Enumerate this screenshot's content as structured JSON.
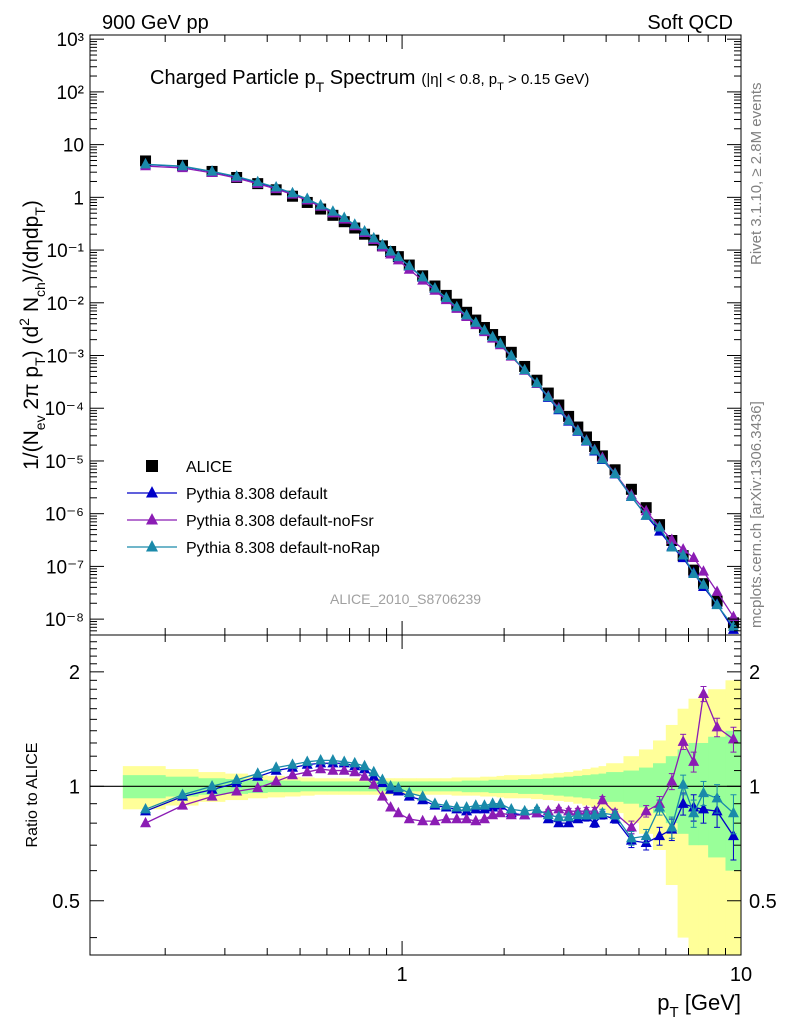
{
  "header": {
    "left": "900 GeV pp",
    "right": "Soft QCD"
  },
  "side_labels": {
    "rivet": "Rivet 3.1.10, ≥ 2.8M events",
    "mcplots": "mcplots.cern.ch [arXiv:1306.3436]"
  },
  "chart_data": [
    {
      "type": "line",
      "title": "Charged Particle pT Spectrum",
      "title_parts": {
        "main": "Charged Particle p",
        "main_sub": "T",
        "main_tail": " Spectrum",
        "cut_a": "(|η| < 0.8, p",
        "cut_sub": "T",
        "cut_b": " > 0.15 GeV)"
      },
      "ylabel_parts": [
        "1/(N",
        "ev",
        " 2π p",
        "T",
        ") (d",
        "2",
        " N",
        "ch",
        ")/(dηdp",
        "T",
        ")"
      ],
      "xlabel": "pT [GeV]",
      "xlabel_parts": {
        "main": "p",
        "sub": "T",
        "tail": " [GeV]"
      },
      "x_scale": "log",
      "y_scale": "log",
      "xlim": [
        0.12,
        10.0
      ],
      "ylim": [
        5e-09,
        1200
      ],
      "y_tick_labels": [
        "10⁻⁸",
        "10⁻⁷",
        "10⁻⁶",
        "10⁻⁵",
        "10⁻⁴",
        "10⁻³",
        "10⁻²",
        "10⁻¹",
        "1",
        "10",
        "10²",
        "10³"
      ],
      "legend_position": "bottom-left",
      "watermark": "ALICE_2010_S8706239",
      "x": [
        0.175,
        0.225,
        0.275,
        0.325,
        0.375,
        0.425,
        0.475,
        0.525,
        0.575,
        0.625,
        0.675,
        0.725,
        0.775,
        0.825,
        0.875,
        0.925,
        0.975,
        1.05,
        1.15,
        1.25,
        1.35,
        1.45,
        1.55,
        1.65,
        1.75,
        1.85,
        1.95,
        2.1,
        2.3,
        2.5,
        2.7,
        2.9,
        3.1,
        3.3,
        3.5,
        3.7,
        3.9,
        4.25,
        4.75,
        5.25,
        5.75,
        6.25,
        6.75,
        7.25,
        7.75,
        8.5,
        9.5
      ],
      "series": [
        {
          "name": "ALICE",
          "color": "#000000",
          "marker": "square",
          "values": [
            4.9,
            4.05,
            3.1,
            2.38,
            1.82,
            1.39,
            1.05,
            0.8,
            0.6,
            0.456,
            0.345,
            0.262,
            0.2,
            0.154,
            0.12,
            0.094,
            0.075,
            0.052,
            0.0325,
            0.0208,
            0.0138,
            0.0094,
            0.0066,
            0.0047,
            0.0034,
            0.0025,
            0.00185,
            0.00115,
            0.00062,
            0.00034,
            0.000194,
            0.000115,
            7e-05,
            4.4e-05,
            2.85e-05,
            1.88e-05,
            1.25e-05,
            6.8e-06,
            2.9e-06,
            1.3e-06,
            6.2e-07,
            3.1e-07,
            1.6e-07,
            8.5e-08,
            4.7e-08,
            2.2e-08,
            8.5e-09
          ]
        },
        {
          "name": "Pythia 8.308 default",
          "color": "#0000c8",
          "marker": "triangle",
          "values": [
            4.2,
            3.85,
            3.06,
            2.44,
            1.91,
            1.52,
            1.18,
            0.92,
            0.69,
            0.525,
            0.397,
            0.297,
            0.221,
            0.163,
            0.122,
            0.092,
            0.0725,
            0.049,
            0.03,
            0.0185,
            0.0122,
            0.0082,
            0.0057,
            0.0041,
            0.00295,
            0.0022,
            0.00165,
            0.00098,
            0.00052,
            0.00029,
            0.000158,
            9.2e-05,
            5.6e-05,
            3.6e-05,
            2.35e-05,
            1.52e-05,
            1.05e-05,
            5.6e-06,
            2.1e-06,
            9.2e-07,
            4.6e-07,
            2.4e-07,
            1.44e-07,
            7.5e-08,
            4.1e-08,
            1.9e-08,
            6.3e-09
          ]
        },
        {
          "name": "Pythia 8.308 default-noFsr",
          "color": "#8b1cb4",
          "marker": "triangle",
          "values": [
            3.92,
            3.6,
            2.91,
            2.32,
            1.81,
            1.44,
            1.13,
            0.875,
            0.665,
            0.5,
            0.38,
            0.285,
            0.212,
            0.156,
            0.113,
            0.083,
            0.064,
            0.0425,
            0.0265,
            0.017,
            0.0113,
            0.0077,
            0.0054,
            0.0038,
            0.0028,
            0.0021,
            0.00157,
            0.00096,
            0.00052,
            0.00029,
            0.000168,
            0.0001,
            6e-05,
            3.8e-05,
            2.45e-05,
            1.62e-05,
            1.15e-05,
            5.8e-06,
            2.25e-06,
            1.12e-06,
            5.6e-07,
            3.2e-07,
            2.1e-07,
            1.45e-07,
            8e-08,
            3.3e-08,
            1.1e-08
          ]
        },
        {
          "name": "Pythia 8.308 default-noRap",
          "color": "#1a8aaa",
          "marker": "triangle",
          "values": [
            4.25,
            3.9,
            3.1,
            2.48,
            1.95,
            1.55,
            1.2,
            0.935,
            0.705,
            0.538,
            0.408,
            0.305,
            0.227,
            0.168,
            0.125,
            0.094,
            0.074,
            0.05,
            0.0305,
            0.0188,
            0.0124,
            0.0083,
            0.0058,
            0.0042,
            0.003,
            0.00225,
            0.00168,
            0.00099,
            0.00053,
            0.0003,
            0.000163,
            9.5e-05,
            5.8e-05,
            3.7e-05,
            2.4e-05,
            1.58e-05,
            1.07e-05,
            5.7e-06,
            2.1e-06,
            9.2e-07,
            5.5e-07,
            2.3e-07,
            1.62e-07,
            7.2e-08,
            4.5e-08,
            1.85e-08,
            7.2e-09
          ]
        }
      ]
    },
    {
      "type": "line",
      "ylabel": "Ratio to ALICE",
      "x_scale": "log",
      "y_scale": "log",
      "xlim": [
        0.12,
        10.0
      ],
      "ylim": [
        0.36,
        2.5
      ],
      "y_ticks": [
        0.5,
        1,
        2
      ],
      "y_tick_labels": [
        "0.5",
        "1",
        "2"
      ],
      "x_tick_labels": [
        "1",
        "10"
      ],
      "reference_line": 1,
      "bands": {
        "x_edges": [
          0.15,
          0.2,
          0.25,
          0.3,
          0.35,
          0.4,
          0.45,
          0.5,
          0.55,
          0.6,
          0.65,
          0.7,
          0.75,
          0.8,
          0.85,
          0.9,
          0.95,
          1.0,
          1.1,
          1.2,
          1.3,
          1.4,
          1.5,
          1.6,
          1.7,
          1.8,
          1.9,
          2.0,
          2.2,
          2.4,
          2.6,
          2.8,
          3.0,
          3.2,
          3.4,
          3.6,
          3.8,
          4.0,
          4.5,
          5.0,
          5.5,
          6.0,
          6.5,
          7.0,
          7.5,
          8.0,
          9.0,
          10.0
        ],
        "yellow_half_width": [
          0.13,
          0.11,
          0.09,
          0.08,
          0.07,
          0.065,
          0.06,
          0.055,
          0.05,
          0.05,
          0.05,
          0.05,
          0.05,
          0.05,
          0.05,
          0.05,
          0.05,
          0.05,
          0.05,
          0.05,
          0.05,
          0.055,
          0.055,
          0.055,
          0.06,
          0.06,
          0.065,
          0.07,
          0.07,
          0.075,
          0.08,
          0.085,
          0.09,
          0.1,
          0.11,
          0.12,
          0.13,
          0.15,
          0.2,
          0.25,
          0.32,
          0.45,
          0.6,
          0.7,
          0.75,
          0.8,
          0.9
        ],
        "green_half_width": [
          0.07,
          0.06,
          0.05,
          0.045,
          0.04,
          0.035,
          0.035,
          0.03,
          0.03,
          0.03,
          0.03,
          0.03,
          0.03,
          0.03,
          0.03,
          0.03,
          0.03,
          0.03,
          0.03,
          0.03,
          0.03,
          0.03,
          0.035,
          0.035,
          0.035,
          0.04,
          0.04,
          0.04,
          0.045,
          0.045,
          0.05,
          0.055,
          0.06,
          0.065,
          0.07,
          0.075,
          0.08,
          0.09,
          0.1,
          0.12,
          0.15,
          0.2,
          0.25,
          0.3,
          0.3,
          0.35,
          0.4
        ],
        "yellow_color": "#ffff99",
        "green_color": "#99ff99"
      },
      "x": [
        0.175,
        0.225,
        0.275,
        0.325,
        0.375,
        0.425,
        0.475,
        0.525,
        0.575,
        0.625,
        0.675,
        0.725,
        0.775,
        0.825,
        0.875,
        0.925,
        0.975,
        1.05,
        1.15,
        1.25,
        1.35,
        1.45,
        1.55,
        1.65,
        1.75,
        1.85,
        1.95,
        2.1,
        2.3,
        2.5,
        2.7,
        2.9,
        3.1,
        3.3,
        3.5,
        3.7,
        3.9,
        4.25,
        4.75,
        5.25,
        5.75,
        6.25,
        6.75,
        7.25,
        7.75,
        8.5,
        9.5
      ],
      "series": [
        {
          "name": "Pythia 8.308 default",
          "color": "#0000c8",
          "values": [
            0.86,
            0.94,
            0.98,
            1.02,
            1.06,
            1.1,
            1.12,
            1.14,
            1.15,
            1.15,
            1.15,
            1.13,
            1.11,
            1.06,
            1.02,
            0.98,
            0.97,
            0.94,
            0.92,
            0.89,
            0.88,
            0.87,
            0.86,
            0.87,
            0.87,
            0.88,
            0.89,
            0.85,
            0.84,
            0.85,
            0.82,
            0.8,
            0.8,
            0.82,
            0.83,
            0.8,
            0.84,
            0.82,
            0.72,
            0.71,
            0.74,
            0.77,
            0.9,
            0.88,
            0.87,
            0.86,
            0.74
          ],
          "errors": [
            0,
            0,
            0,
            0,
            0,
            0,
            0,
            0,
            0,
            0,
            0,
            0,
            0,
            0,
            0,
            0,
            0,
            0,
            0,
            0,
            0,
            0,
            0,
            0,
            0,
            0,
            0,
            0,
            0.01,
            0.01,
            0.01,
            0.01,
            0.015,
            0.015,
            0.02,
            0.02,
            0.02,
            0.02,
            0.03,
            0.03,
            0.04,
            0.05,
            0.06,
            0.07,
            0.07,
            0.08,
            0.1
          ]
        },
        {
          "name": "Pythia 8.308 default-noFsr",
          "color": "#8b1cb4",
          "values": [
            0.8,
            0.89,
            0.94,
            0.97,
            0.99,
            1.03,
            1.07,
            1.09,
            1.11,
            1.1,
            1.1,
            1.09,
            1.06,
            1.01,
            0.94,
            0.88,
            0.85,
            0.82,
            0.81,
            0.81,
            0.82,
            0.82,
            0.82,
            0.81,
            0.82,
            0.84,
            0.85,
            0.84,
            0.84,
            0.85,
            0.86,
            0.87,
            0.86,
            0.86,
            0.86,
            0.86,
            0.92,
            0.85,
            0.78,
            0.86,
            0.9,
            1.03,
            1.31,
            1.16,
            1.75,
            1.43,
            1.33
          ],
          "errors": [
            0,
            0,
            0,
            0,
            0,
            0,
            0,
            0,
            0,
            0,
            0,
            0,
            0,
            0,
            0,
            0,
            0,
            0,
            0,
            0,
            0,
            0,
            0,
            0,
            0,
            0,
            0,
            0,
            0.01,
            0.01,
            0.01,
            0.01,
            0.015,
            0.015,
            0.02,
            0.02,
            0.02,
            0.02,
            0.03,
            0.03,
            0.04,
            0.05,
            0.06,
            0.07,
            0.08,
            0.08,
            0.1
          ]
        },
        {
          "name": "Pythia 8.308 default-noRap",
          "color": "#1a8aaa",
          "values": [
            0.87,
            0.95,
            1.0,
            1.04,
            1.08,
            1.12,
            1.14,
            1.16,
            1.17,
            1.17,
            1.16,
            1.15,
            1.13,
            1.09,
            1.04,
            1.0,
            0.99,
            0.96,
            0.94,
            0.9,
            0.89,
            0.88,
            0.88,
            0.89,
            0.89,
            0.9,
            0.9,
            0.87,
            0.86,
            0.87,
            0.84,
            0.83,
            0.83,
            0.84,
            0.84,
            0.84,
            0.85,
            0.84,
            0.73,
            0.74,
            0.88,
            0.78,
            1.01,
            0.85,
            0.96,
            0.93,
            0.85
          ],
          "errors": [
            0,
            0,
            0,
            0,
            0,
            0,
            0,
            0,
            0,
            0,
            0,
            0,
            0,
            0,
            0,
            0,
            0,
            0,
            0,
            0,
            0,
            0,
            0,
            0,
            0,
            0,
            0,
            0,
            0.01,
            0.01,
            0.01,
            0.01,
            0.015,
            0.015,
            0.02,
            0.02,
            0.02,
            0.02,
            0.03,
            0.03,
            0.04,
            0.05,
            0.06,
            0.07,
            0.07,
            0.08,
            0.1
          ]
        }
      ]
    }
  ]
}
